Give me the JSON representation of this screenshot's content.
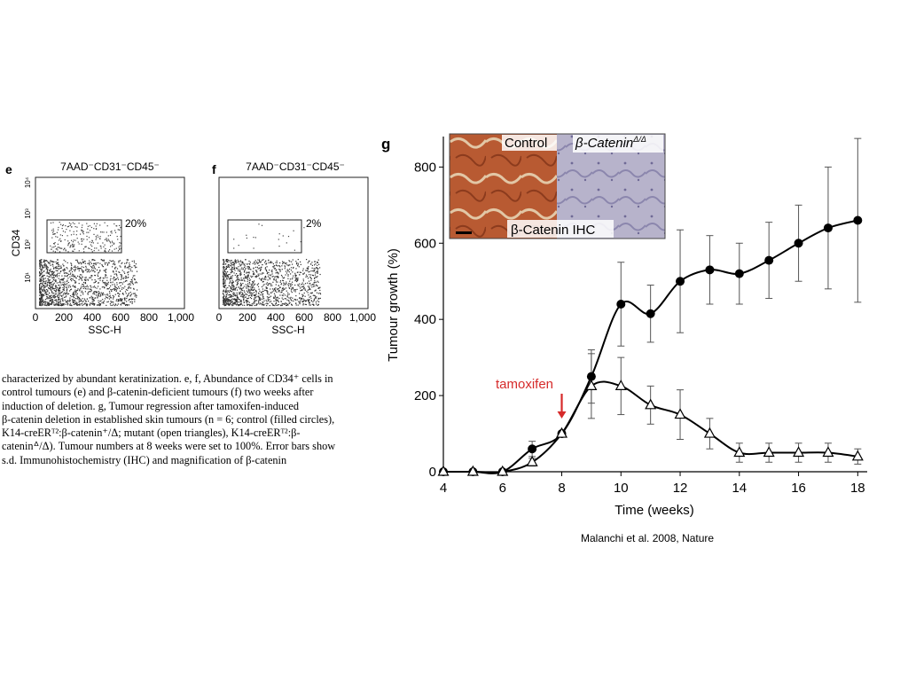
{
  "panels_ef": [
    {
      "panel_letter": "e",
      "title": "7AAD⁻CD31⁻CD45⁻",
      "gate_label": "20%",
      "ylabel": "CD34",
      "xlabel": "SSC-H",
      "x_ticks": [
        "0",
        "200",
        "400",
        "600",
        "800",
        "1,000"
      ],
      "y_ticks": [
        "10¹",
        "10²",
        "10³",
        "10⁴"
      ]
    },
    {
      "panel_letter": "f",
      "title": "7AAD⁻CD31⁻CD45⁻",
      "gate_label": "2%",
      "ylabel": "",
      "xlabel": "SSC-H",
      "x_ticks": [
        "0",
        "200",
        "400",
        "600",
        "800",
        "1,000"
      ],
      "y_ticks": [
        "10¹",
        "10²",
        "10³",
        "10⁴"
      ]
    }
  ],
  "caption_lines": [
    "characterized by abundant keratinization. e, f, Abundance of CD34⁺ cells in",
    "control tumours (e) and β-catenin-deficient tumours (f) two weeks after",
    "induction of deletion. g, Tumour regression after tamoxifen-induced",
    "β-catenin deletion in established skin tumours (n = 6; control (filled circles),",
    "K14-creERᵀ²:β-catenin⁺/Δ; mutant (open triangles), K14-creERᵀ²:β-",
    "cateninᐞ/Δ). Tumour numbers at 8 weeks were set to 100%. Error bars show",
    "s.d. Immunohistochemistry (IHC) and magnification of β-catenin"
  ],
  "panel_g": {
    "panel_letter": "g",
    "annotation": "tamoxifen",
    "annotation_color": "#d62a2a",
    "inset": {
      "left_label": "Control",
      "right_label": "β-Catenin",
      "right_label_superscript": "Δ/Δ",
      "bottom_label": "β-Catenin IHC",
      "left_tissue_color": "#b85a32",
      "right_tissue_color": "#b7b3cb"
    }
  },
  "chart_data": {
    "type": "line",
    "xlabel": "Time (weeks)",
    "ylabel": "Tumour growth (%)",
    "xlim": [
      4,
      18.2
    ],
    "ylim": [
      0,
      880
    ],
    "x_ticks": [
      4,
      6,
      8,
      10,
      12,
      14,
      16,
      18
    ],
    "y_ticks": [
      0,
      200,
      400,
      600,
      800
    ],
    "annotation_x": 8,
    "series": [
      {
        "marker": "filled-circle",
        "x": [
          4,
          5,
          6,
          7,
          8,
          9,
          10,
          11,
          12,
          13,
          14,
          15,
          16,
          17,
          18
        ],
        "y": [
          0,
          0,
          0,
          60,
          100,
          250,
          440,
          415,
          500,
          530,
          520,
          555,
          600,
          640,
          660
        ],
        "error": [
          0,
          0,
          0,
          20,
          0,
          70,
          110,
          75,
          135,
          90,
          80,
          100,
          100,
          160,
          215
        ]
      },
      {
        "marker": "open-triangle",
        "x": [
          4,
          5,
          6,
          7,
          8,
          9,
          10,
          11,
          12,
          13,
          14,
          15,
          16,
          17,
          18
        ],
        "y": [
          0,
          0,
          0,
          25,
          100,
          225,
          225,
          175,
          150,
          100,
          50,
          50,
          50,
          50,
          40
        ],
        "error": [
          0,
          0,
          0,
          10,
          0,
          85,
          75,
          50,
          65,
          40,
          25,
          25,
          25,
          25,
          20
        ]
      }
    ]
  },
  "credit": "Malanchi et al. 2008, Nature"
}
